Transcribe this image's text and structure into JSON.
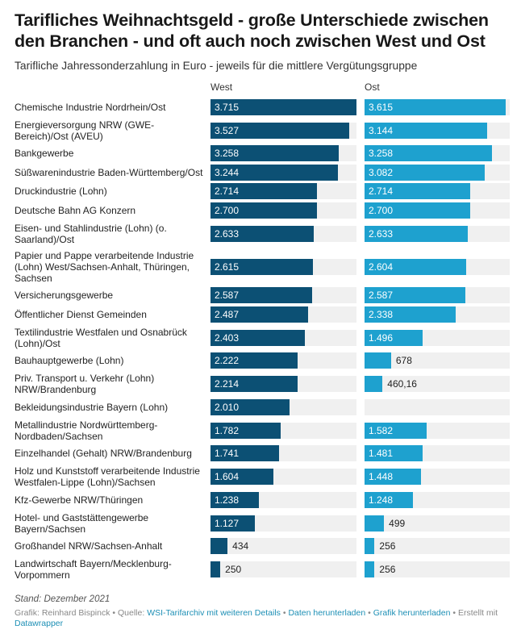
{
  "header": {
    "title": "Tarifliches Weihnachtsgeld - große Unterschiede zwischen den Branchen - und oft auch noch zwischen West und Ost",
    "subtitle": "Tarifliche Jahressonderzahlung in Euro - jeweils für die mittlere Vergütungsgruppe"
  },
  "colors": {
    "west": "#0c5074",
    "ost": "#1ea1cf",
    "track": "#f0f0f0",
    "link": "#1d8fb5"
  },
  "chart_data": {
    "type": "bar",
    "title": "Tarifliches Weihnachtsgeld - große Unterschiede zwischen den Branchen - und oft auch noch zwischen West und Ost",
    "subtitle": "Tarifliche Jahressonderzahlung in Euro - jeweils für die mittlere Vergütungsgruppe",
    "orientation": "horizontal",
    "xlabel": "",
    "ylabel": "",
    "xlim": [
      0,
      3715
    ],
    "grid": false,
    "categories": [
      "Chemische Industrie Nordrhein/Ost",
      "Energieversorgung NRW (GWE-Bereich)/Ost (AVEU)",
      "Bankgewerbe",
      "Süßwarenindustrie Baden-Württemberg/Ost",
      "Druckindustrie (Lohn)",
      "Deutsche Bahn AG Konzern",
      "Eisen- und Stahlindustrie (Lohn) (o. Saarland)/Ost",
      "Papier und Pappe verarbeitende Industrie (Lohn) West/Sachsen-Anhalt, Thüringen, Sachsen",
      "Versicherungsgewerbe",
      "Öffentlicher Dienst Gemeinden",
      "Textilindustrie Westfalen und Osnabrück (Lohn)/Ost",
      "Bauhauptgewerbe (Lohn)",
      "Priv. Transport u. Verkehr (Lohn) NRW/Brandenburg",
      "Bekleidungsindustrie Bayern (Lohn)",
      "Metallindustrie Nordwürttemberg-Nordbaden/Sachsen",
      "Einzelhandel (Gehalt) NRW/Brandenburg",
      "Holz und Kunststoff verarbeitende Industrie Westfalen-Lippe (Lohn)/Sachsen",
      "Kfz-Gewerbe NRW/Thüringen",
      "Hotel- und Gaststättengewerbe Bayern/Sachsen",
      "Großhandel NRW/Sachsen-Anhalt",
      "Landwirtschaft Bayern/Mecklenburg-Vorpommern"
    ],
    "series": [
      {
        "name": "West",
        "values": [
          3715,
          3527,
          3258,
          3244,
          2714,
          2700,
          2633,
          2615,
          2587,
          2487,
          2403,
          2222,
          2214,
          2010,
          1782,
          1741,
          1604,
          1238,
          1127,
          434,
          250
        ],
        "labels": [
          "3.715",
          "3.527",
          "3.258",
          "3.244",
          "2.714",
          "2.700",
          "2.633",
          "2.615",
          "2.587",
          "2.487",
          "2.403",
          "2.222",
          "2.214",
          "2.010",
          "1.782",
          "1.741",
          "1.604",
          "1.238",
          "1.127",
          "434",
          "250"
        ]
      },
      {
        "name": "Ost",
        "values": [
          3615,
          3144,
          3258,
          3082,
          2714,
          2700,
          2633,
          2604,
          2587,
          2338,
          1496,
          678,
          460.16,
          null,
          1582,
          1481,
          1448,
          1248,
          499,
          256,
          256
        ],
        "labels": [
          "3.615",
          "3.144",
          "3.258",
          "3.082",
          "2.714",
          "2.700",
          "2.633",
          "2.604",
          "2.587",
          "2.338",
          "1.496",
          "678",
          "460,16",
          "",
          "1.582",
          "1.481",
          "1.448",
          "1.248",
          "499",
          "256",
          "256"
        ]
      }
    ]
  },
  "footer": {
    "stand": "Stand: Dezember 2021",
    "grafik": "Grafik: Reinhard Bispinck",
    "quelle_prefix": "Quelle:",
    "quelle_link": "WSI-Tarifarchiv mit weiteren Details",
    "daten_link": "Daten herunterladen",
    "grafik_link": "Grafik herunterladen",
    "erstellt_prefix": "Erstellt mit",
    "datawrapper_link": "Datawrapper",
    "separator": "•"
  }
}
